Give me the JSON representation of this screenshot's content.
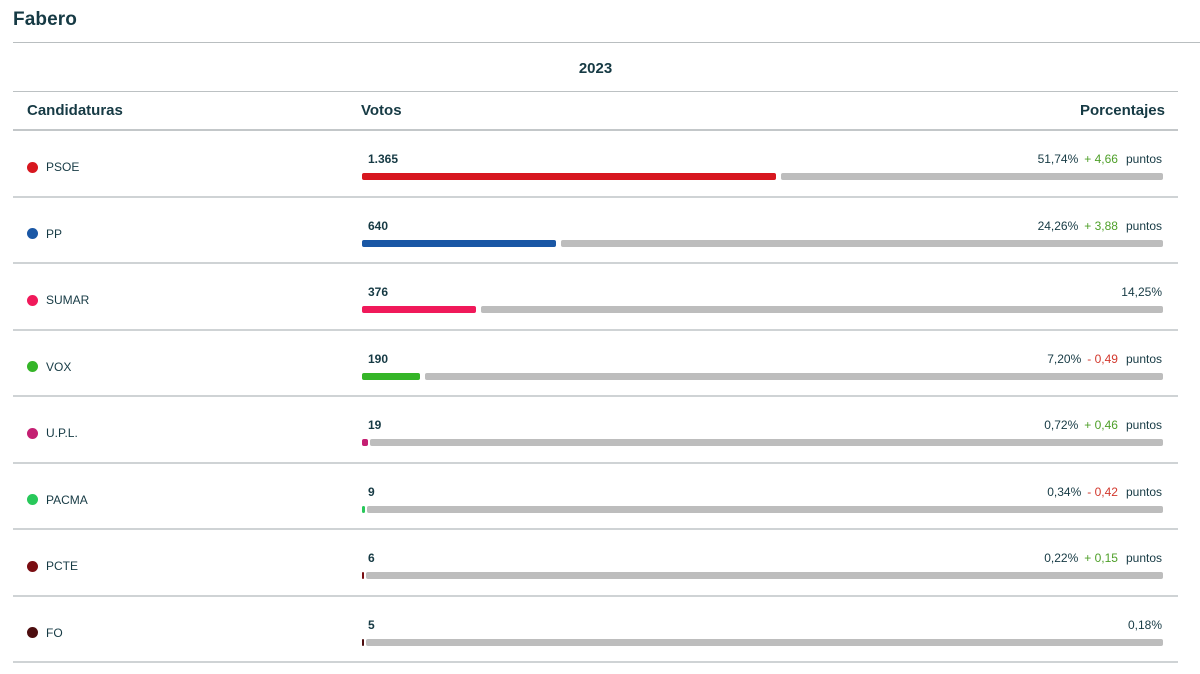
{
  "page": {
    "title": "Fabero",
    "year": "2023"
  },
  "table": {
    "headers": {
      "candidaturas": "Candidaturas",
      "votos": "Votos",
      "porcentajes": "Porcentajes"
    },
    "rows": [
      {
        "party": "PSOE",
        "color": "#d7171f",
        "votes": "1.365",
        "percent": "51,74%",
        "diff": "+ 4,66",
        "direction": "up",
        "unit": "puntos",
        "share": 0.5174
      },
      {
        "party": "PP",
        "color": "#1a57a5",
        "votes": "640",
        "percent": "24,26%",
        "diff": "+ 3,88",
        "direction": "up",
        "unit": "puntos",
        "share": 0.2426
      },
      {
        "party": "SUMAR",
        "color": "#f0195a",
        "votes": "376",
        "percent": "14,25%",
        "diff": "",
        "direction": "none",
        "unit": "",
        "share": 0.1425
      },
      {
        "party": "VOX",
        "color": "#35b528",
        "votes": "190",
        "percent": "7,20%",
        "diff": "- 0,49",
        "direction": "down",
        "unit": "puntos",
        "share": 0.072
      },
      {
        "party": "U.P.L.",
        "color": "#c41f72",
        "votes": "19",
        "percent": "0,72%",
        "diff": "+ 0,46",
        "direction": "up",
        "unit": "puntos",
        "share": 0.0072
      },
      {
        "party": "PACMA",
        "color": "#28c85a",
        "votes": "9",
        "percent": "0,34%",
        "diff": "- 0,42",
        "direction": "down",
        "unit": "puntos",
        "share": 0.0034
      },
      {
        "party": "PCTE",
        "color": "#7a0d12",
        "votes": "6",
        "percent": "0,22%",
        "diff": "+ 0,15",
        "direction": "up",
        "unit": "puntos",
        "share": 0.0022
      },
      {
        "party": "FO",
        "color": "#4d0d0f",
        "votes": "5",
        "percent": "0,18%",
        "diff": "",
        "direction": "none",
        "unit": "",
        "share": 0.0018
      }
    ]
  }
}
